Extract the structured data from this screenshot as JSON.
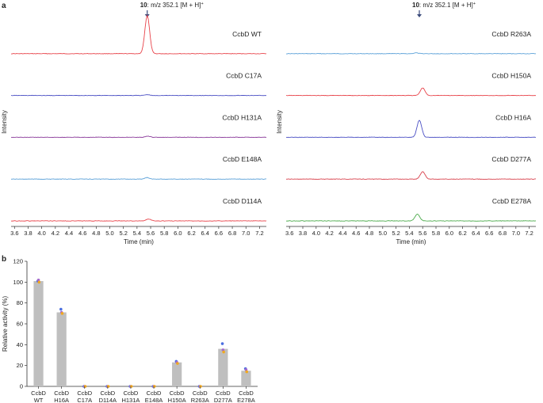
{
  "figure": {
    "panel_a": "a",
    "panel_b": "b",
    "annotation": {
      "compound": "10",
      "text": ": m/z 352.1 [M + H]",
      "superscript": "+"
    }
  },
  "chart_data": [
    {
      "type": "line",
      "panel": "a-left",
      "xlabel": "Time (min)",
      "ylabel": "Intensity",
      "xlim": [
        3.55,
        7.3
      ],
      "xticks": [
        "3.6",
        "3.8",
        "4.0",
        "4.2",
        "4.4",
        "4.6",
        "4.8",
        "5.0",
        "5.2",
        "5.4",
        "5.6",
        "5.8",
        "6.0",
        "6.2",
        "6.4",
        "6.6",
        "6.8",
        "7.0",
        "7.2"
      ],
      "traces": [
        {
          "label": "CcbD WT",
          "color": "#e8434a",
          "peak_time": 5.55,
          "peak_rel": 1.0
        },
        {
          "label": "CcbD C17A",
          "color": "#4a4fc4",
          "peak_time": 5.55,
          "peak_rel": 0.02
        },
        {
          "label": "CcbD H131A",
          "color": "#8a3a9a",
          "peak_time": 5.56,
          "peak_rel": 0.03
        },
        {
          "label": "CcbD E148A",
          "color": "#5aa0d8",
          "peak_time": 5.55,
          "peak_rel": 0.04
        },
        {
          "label": "CcbD D114A",
          "color": "#e8434a",
          "peak_time": 5.57,
          "peak_rel": 0.05
        }
      ]
    },
    {
      "type": "line",
      "panel": "a-right",
      "xlabel": "Time (min)",
      "ylabel": "Intensity",
      "xlim": [
        3.55,
        7.3
      ],
      "xticks": [
        "3.6",
        "3.8",
        "4.0",
        "4.2",
        "4.4",
        "4.6",
        "4.8",
        "5.0",
        "5.2",
        "5.4",
        "5.6",
        "5.8",
        "6.0",
        "6.2",
        "6.4",
        "6.6",
        "6.8",
        "7.0",
        "7.2"
      ],
      "traces": [
        {
          "label": "CcbD R263A",
          "color": "#5aa0d8",
          "peak_time": 5.5,
          "peak_rel": 0.02
        },
        {
          "label": "CcbD H150A",
          "color": "#e8434a",
          "peak_time": 5.6,
          "peak_rel": 0.2
        },
        {
          "label": "CcbD H16A",
          "color": "#4a4fc4",
          "peak_time": 5.55,
          "peak_rel": 0.45
        },
        {
          "label": "CcbD D277A",
          "color": "#d9434e",
          "peak_time": 5.6,
          "peak_rel": 0.2
        },
        {
          "label": "CcbD E278A",
          "color": "#4aaa4a",
          "peak_time": 5.52,
          "peak_rel": 0.18
        }
      ]
    },
    {
      "type": "bar",
      "panel": "b",
      "ylabel": "Relative activity (%)",
      "ylim": [
        0,
        120
      ],
      "yticks": [
        "0",
        "20",
        "40",
        "60",
        "80",
        "100",
        "120"
      ],
      "categories": [
        [
          "CcbD",
          "WT"
        ],
        [
          "CcbD",
          "H16A"
        ],
        [
          "CcbD",
          "C17A"
        ],
        [
          "CcbD",
          "D114A"
        ],
        [
          "CcbD",
          "H131A"
        ],
        [
          "CcbD",
          "E148A"
        ],
        [
          "CcbD",
          "H150A"
        ],
        [
          "CcbD",
          "R263A"
        ],
        [
          "CcbD",
          "D277A"
        ],
        [
          "CcbD",
          "E278A"
        ]
      ],
      "values": [
        101,
        71,
        0,
        0,
        0,
        0,
        23,
        0,
        36,
        15
      ],
      "replicates": [
        [
          101,
          102,
          100
        ],
        [
          74,
          71,
          70
        ],
        [
          0,
          0,
          0
        ],
        [
          0,
          0,
          0
        ],
        [
          0,
          0,
          0
        ],
        [
          0,
          0,
          0
        ],
        [
          24,
          23,
          22
        ],
        [
          0,
          0,
          0
        ],
        [
          41,
          35,
          33
        ],
        [
          17,
          16,
          14
        ]
      ],
      "bar_color": "#bfbfbf",
      "point_colors": [
        "#4a6fe0",
        "#a66acb",
        "#f0a820"
      ]
    }
  ]
}
